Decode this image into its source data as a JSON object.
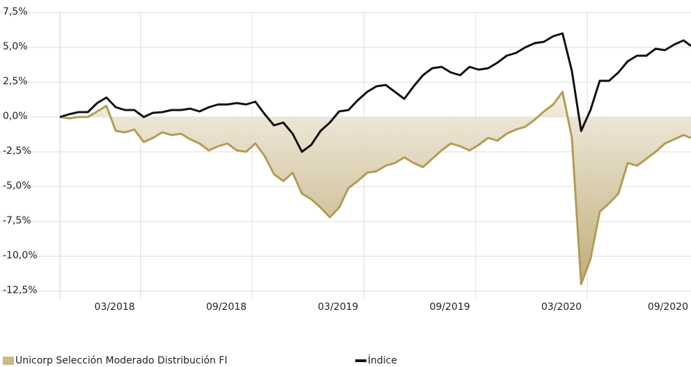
{
  "chart_data": {
    "type": "line",
    "x": [
      0,
      0.5,
      1,
      1.5,
      2,
      2.5,
      3,
      3.5,
      4,
      4.5,
      5,
      5.5,
      6,
      6.5,
      7,
      7.5,
      8,
      8.5,
      9,
      9.5,
      10,
      10.5,
      11,
      11.5,
      12,
      12.5,
      13,
      13.5,
      14,
      14.5,
      15,
      15.5,
      16,
      16.5,
      17,
      17.5,
      18,
      18.5,
      19,
      19.5,
      20,
      20.5,
      21,
      21.5,
      22,
      22.5,
      23,
      23.5,
      24,
      24.5,
      25,
      25.5,
      26,
      26.5,
      27,
      27.5,
      28,
      28.5,
      29,
      29.5,
      30,
      30.5,
      31,
      31.5,
      32,
      32.5,
      33,
      33.5,
      33.9
    ],
    "series": [
      {
        "name": "Unicorp Selección Moderado Distribución FI",
        "color": "#b39b57",
        "fill": true,
        "values": [
          0,
          -0.1,
          0,
          0,
          0.4,
          0.8,
          -1.0,
          -1.1,
          -0.9,
          -1.8,
          -1.5,
          -1.1,
          -1.3,
          -1.2,
          -1.6,
          -1.9,
          -2.4,
          -2.1,
          -1.9,
          -2.4,
          -2.5,
          -1.9,
          -2.8,
          -4.1,
          -4.6,
          -4.0,
          -5.5,
          -5.9,
          -6.5,
          -7.2,
          -6.5,
          -5.1,
          -4.6,
          -4.0,
          -3.9,
          -3.5,
          -3.3,
          -2.9,
          -3.3,
          -3.6,
          -3.0,
          -2.4,
          -1.9,
          -2.1,
          -2.4,
          -2.0,
          -1.5,
          -1.7,
          -1.2,
          -0.9,
          -0.7,
          -0.2,
          0.4,
          0.9,
          1.8,
          -1.5,
          -12.0,
          -10.2,
          -6.8,
          -6.2,
          -5.5,
          -3.3,
          -3.5,
          -3.0,
          -2.5,
          -1.9,
          -1.6,
          -1.3,
          -1.5
        ]
      },
      {
        "name": "Índice",
        "color": "#111111",
        "fill": false,
        "values": [
          0,
          0.2,
          0.35,
          0.35,
          1.0,
          1.4,
          0.7,
          0.5,
          0.5,
          0.0,
          0.3,
          0.35,
          0.5,
          0.5,
          0.6,
          0.4,
          0.7,
          0.9,
          0.9,
          1.0,
          0.9,
          1.1,
          0.2,
          -0.6,
          -0.4,
          -1.2,
          -2.5,
          -2.0,
          -1.0,
          -0.4,
          0.4,
          0.5,
          1.2,
          1.8,
          2.2,
          2.3,
          1.8,
          1.3,
          2.2,
          3.0,
          3.5,
          3.6,
          3.2,
          3.0,
          3.6,
          3.4,
          3.5,
          3.9,
          4.4,
          4.6,
          5.0,
          5.3,
          5.4,
          5.8,
          6.0,
          3.3,
          -1.0,
          0.5,
          2.6,
          2.6,
          3.2,
          4.0,
          4.4,
          4.4,
          4.9,
          4.8,
          5.2,
          5.5,
          5.1
        ]
      }
    ],
    "xlim": [
      0,
      33.9
    ],
    "xticks": [
      {
        "value": 4.33,
        "label": "03/2018"
      },
      {
        "value": 10.33,
        "label": "09/2018"
      },
      {
        "value": 16.33,
        "label": "03/2019"
      },
      {
        "value": 22.33,
        "label": "09/2019"
      },
      {
        "value": 28.33,
        "label": "03/2020"
      },
      {
        "value": 34.33,
        "label": "09/2020"
      }
    ],
    "ylim": [
      -12.5,
      7.5
    ],
    "yticks": [
      {
        "value": 7.5,
        "label": "7,5%"
      },
      {
        "value": 5,
        "label": "5,0%"
      },
      {
        "value": 2.5,
        "label": "2,5%"
      },
      {
        "value": 0,
        "label": "0,0%"
      },
      {
        "value": -2.5,
        "label": "-2,5%"
      },
      {
        "value": -5,
        "label": "-5,0%"
      },
      {
        "value": -7.5,
        "label": "-7,5%"
      },
      {
        "value": -10,
        "label": "-10,0%"
      },
      {
        "value": -12.5,
        "label": "-12,5%"
      }
    ],
    "grid": true
  }
}
